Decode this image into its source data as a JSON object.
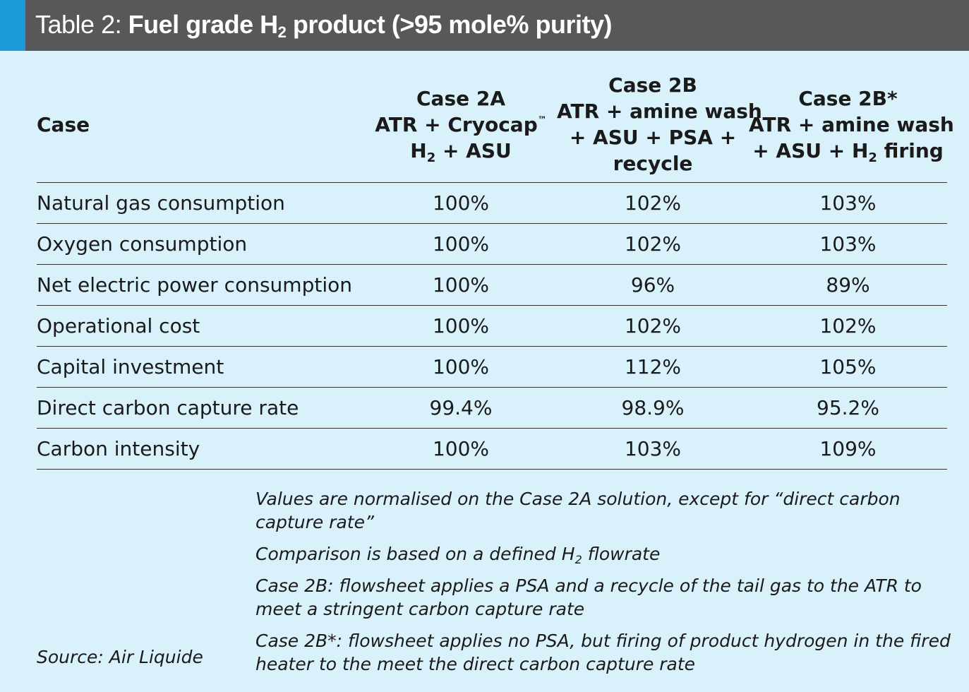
{
  "title": {
    "lead": "Table 2: ",
    "bold_pre": "Fuel grade H",
    "bold_sub": "2",
    "bold_post": " product (>95 mole% purity)"
  },
  "table": {
    "header_case": "Case",
    "columns": [
      {
        "line1": "Case 2A",
        "line2_text": "ATR + Cryocap",
        "line2_sup": "™",
        "line3_pre": "H",
        "line3_sub": "2",
        "line3_post": " + ASU"
      },
      {
        "line1": "Case 2B",
        "line2": "ATR + amine wash",
        "line3": "+ ASU + PSA +",
        "line4": "recycle"
      },
      {
        "line1": "Case 2B*",
        "line2": "ATR + amine wash",
        "line3_pre": "+ ASU + H",
        "line3_sub": "2",
        "line3_post": " firing"
      }
    ],
    "rows": [
      {
        "label": "Natural gas consumption",
        "values": [
          "100%",
          "102%",
          "103%"
        ]
      },
      {
        "label": "Oxygen consumption",
        "values": [
          "100%",
          "102%",
          "103%"
        ]
      },
      {
        "label": "Net electric power consumption",
        "values": [
          "100%",
          "96%",
          "89%"
        ]
      },
      {
        "label": "Operational cost",
        "values": [
          "100%",
          "102%",
          "102%"
        ]
      },
      {
        "label": "Capital investment",
        "values": [
          "100%",
          "112%",
          "105%"
        ]
      },
      {
        "label": "Direct carbon capture rate",
        "values": [
          "99.4%",
          "98.9%",
          "95.2%"
        ]
      },
      {
        "label": "Carbon intensity",
        "values": [
          "100%",
          "103%",
          "109%"
        ]
      }
    ]
  },
  "notes": {
    "n1": "Values are normalised on the Case 2A solution, except for “direct carbon capture rate”",
    "n2_pre": "Comparison is based on a defined H",
    "n2_sub": "2",
    "n2_post": " flowrate",
    "n3": "Case 2B: flowsheet applies a PSA and a recycle of the tail gas to the ATR to meet a stringent carbon capture rate",
    "n4": "Case 2B*: flowsheet applies no PSA, but firing of product hydrogen in the fired heater to the meet the direct carbon capture rate"
  },
  "source": "Source: Air Liquide",
  "colors": {
    "background": "#d9f1fb",
    "title_bar": "#58585a",
    "accent": "#1a9ad6"
  }
}
